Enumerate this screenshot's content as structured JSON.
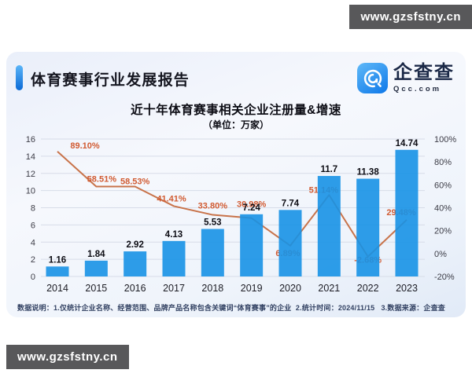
{
  "watermark": {
    "text": "www.gzsfstny.cn"
  },
  "report": {
    "title": "体育赛事行业发展报告",
    "logo": {
      "name": "企查查",
      "domain": "Qcc.com"
    },
    "footnote": "数据说明：1.仅统计企业名称、经营范围、品牌产品名称包含关键词“体育赛事”的企业  2.统计时间：2024/11/15   3.数据来源：企查查"
  },
  "colors": {
    "accent_blue": "#0f6fdb",
    "bar_blue": "#1792e6",
    "line_orange": "#c8734a",
    "pct_label_orange": "#d15b32",
    "gridline": "#d7dce8",
    "watermark_bg": "#58585a"
  },
  "chart_data": {
    "type": "bar+line",
    "title": "近十年体育赛事相关企业注册量&增速",
    "subtitle": "（单位：万家）",
    "categories": [
      "2014",
      "2015",
      "2016",
      "2017",
      "2018",
      "2019",
      "2020",
      "2021",
      "2022",
      "2023"
    ],
    "series": [
      {
        "name": "注册量",
        "type": "bar",
        "axis": "left",
        "color": "#1792e6",
        "values": [
          1.16,
          1.84,
          2.92,
          4.13,
          5.53,
          7.24,
          7.74,
          11.7,
          11.38,
          14.74
        ],
        "labels": [
          "1.16",
          "1.84",
          "2.92",
          "4.13",
          "5.53",
          "7.24",
          "7.74",
          "11.7",
          "11.38",
          "14.74"
        ]
      },
      {
        "name": "增速",
        "type": "line",
        "axis": "right",
        "color": "#c8734a",
        "label_color": "#d15b32",
        "values": [
          89.1,
          58.51,
          58.53,
          41.41,
          33.8,
          30.98,
          6.89,
          51.14,
          -2.68,
          29.48
        ],
        "labels": [
          "89.10%",
          "58.51%",
          "58.53%",
          "41.41%",
          "33.80%",
          "30.98%",
          "6.89%",
          "51.14%",
          "-2.68%",
          "29.48%"
        ]
      }
    ],
    "left_axis": {
      "min": 0,
      "max": 16,
      "ticks": [
        16,
        14,
        12,
        10,
        8,
        6,
        4,
        2,
        0
      ]
    },
    "right_axis": {
      "min": -20,
      "max": 100,
      "ticks": [
        "100%",
        "80%",
        "60%",
        "40%",
        "20%",
        "0%",
        "-20%"
      ]
    },
    "grid": true,
    "legend": "none"
  }
}
